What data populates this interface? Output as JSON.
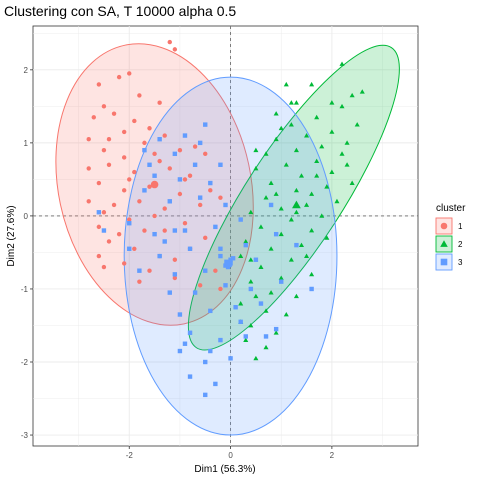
{
  "chart_data": {
    "type": "scatter",
    "title": "Clustering con SA, T 10000 alpha 0.5",
    "xlabel": "Dim1 (56.3%)",
    "ylabel": "Dim2 (27.6%)",
    "xlim": [
      -3.9,
      3.7
    ],
    "ylim": [
      -3.15,
      2.6
    ],
    "xticks": [
      -2,
      0,
      2
    ],
    "yticks": [
      -3,
      -2,
      -1,
      0,
      1,
      2
    ],
    "grid": true,
    "legend_title": "cluster",
    "legend_position": "right",
    "series": [
      {
        "name": "1",
        "color": "#F8766D",
        "marker": "circle",
        "centroid": [
          -1.5,
          0.43
        ],
        "ellipse": {
          "cx": -1.5,
          "cy": 0.43,
          "rx": 1.9,
          "ry": 1.95,
          "angle": -12
        },
        "points": [
          [
            -1.2,
            2.38
          ],
          [
            -1.1,
            2.28
          ],
          [
            -2.0,
            1.95
          ],
          [
            -2.2,
            1.9
          ],
          [
            -1.8,
            1.65
          ],
          [
            -2.6,
            1.8
          ],
          [
            -2.5,
            1.5
          ],
          [
            -1.4,
            1.55
          ],
          [
            -2.7,
            1.35
          ],
          [
            -2.3,
            1.4
          ],
          [
            -1.9,
            1.3
          ],
          [
            -2.1,
            1.15
          ],
          [
            -2.8,
            1.05
          ],
          [
            -1.3,
            1.1
          ],
          [
            -1.6,
            1.2
          ],
          [
            -2.5,
            0.9
          ],
          [
            -2.1,
            0.8
          ],
          [
            -1.5,
            0.85
          ],
          [
            -1.0,
            0.9
          ],
          [
            -0.7,
            0.95
          ],
          [
            -0.5,
            0.85
          ],
          [
            -2.8,
            0.65
          ],
          [
            -2.4,
            0.7
          ],
          [
            -1.9,
            0.6
          ],
          [
            -1.2,
            0.65
          ],
          [
            -0.8,
            0.55
          ],
          [
            -2.6,
            0.45
          ],
          [
            -2.1,
            0.35
          ],
          [
            -1.6,
            0.4
          ],
          [
            -1.0,
            0.3
          ],
          [
            -0.4,
            0.35
          ],
          [
            -2.8,
            0.2
          ],
          [
            -2.3,
            0.15
          ],
          [
            -1.8,
            0.2
          ],
          [
            -1.3,
            0.1
          ],
          [
            -0.6,
            0.15
          ],
          [
            -0.2,
            0.25
          ],
          [
            -2.5,
            0.05
          ],
          [
            -2.0,
            -0.05
          ],
          [
            -1.5,
            0.0
          ],
          [
            -2.6,
            -0.15
          ],
          [
            -2.2,
            -0.25
          ],
          [
            -1.7,
            -0.2
          ],
          [
            -0.9,
            -0.1
          ],
          [
            -2.4,
            -0.35
          ],
          [
            -1.9,
            -0.45
          ],
          [
            -1.4,
            -0.55
          ],
          [
            -0.8,
            -0.45
          ],
          [
            -2.6,
            -0.55
          ],
          [
            -2.1,
            -0.65
          ],
          [
            -1.6,
            -0.75
          ],
          [
            -0.3,
            -0.75
          ],
          [
            -1.1,
            -0.85
          ],
          [
            -0.6,
            -0.95
          ],
          [
            -0.2,
            -1.0
          ],
          [
            -1.8,
            -0.9
          ],
          [
            -1.3,
            -0.2
          ],
          [
            -0.9,
            0.5
          ],
          [
            -2.0,
            0.5
          ],
          [
            -1.7,
            1.0
          ],
          [
            -1.1,
            -0.6
          ],
          [
            -2.4,
            1.05
          ],
          [
            -1.4,
            0.75
          ],
          [
            -0.5,
            -0.3
          ],
          [
            -2.5,
            -0.7
          ]
        ]
      },
      {
        "name": "2",
        "color": "#00BA38",
        "marker": "triangle",
        "centroid": [
          1.3,
          0.15
        ],
        "ellipse": {
          "cx": 1.25,
          "cy": 0.25,
          "rx": 0.95,
          "ry": 2.45,
          "angle": 33
        },
        "points": [
          [
            2.2,
            2.08
          ],
          [
            1.6,
            1.8
          ],
          [
            1.1,
            1.8
          ],
          [
            2.4,
            1.65
          ],
          [
            2.0,
            1.55
          ],
          [
            1.3,
            1.55
          ],
          [
            0.9,
            1.4
          ],
          [
            2.2,
            1.5
          ],
          [
            1.7,
            1.35
          ],
          [
            1.2,
            1.25
          ],
          [
            2.5,
            1.25
          ],
          [
            2.0,
            1.15
          ],
          [
            1.5,
            1.1
          ],
          [
            0.9,
            1.05
          ],
          [
            2.3,
            1.0
          ],
          [
            1.8,
            0.95
          ],
          [
            1.3,
            0.9
          ],
          [
            0.7,
            0.85
          ],
          [
            2.2,
            0.85
          ],
          [
            1.7,
            0.75
          ],
          [
            1.1,
            0.7
          ],
          [
            0.5,
            0.65
          ],
          [
            2.0,
            0.6
          ],
          [
            1.4,
            0.55
          ],
          [
            0.8,
            0.45
          ],
          [
            1.9,
            0.4
          ],
          [
            1.3,
            0.35
          ],
          [
            0.7,
            0.25
          ],
          [
            2.1,
            0.2
          ],
          [
            1.5,
            0.15
          ],
          [
            1.0,
            0.1
          ],
          [
            0.4,
            0.05
          ],
          [
            1.8,
            0.0
          ],
          [
            1.2,
            -0.05
          ],
          [
            0.6,
            -0.15
          ],
          [
            1.6,
            -0.2
          ],
          [
            1.0,
            -0.25
          ],
          [
            0.3,
            -0.35
          ],
          [
            1.4,
            -0.4
          ],
          [
            0.8,
            -0.45
          ],
          [
            0.2,
            -0.55
          ],
          [
            1.2,
            -0.6
          ],
          [
            0.6,
            -0.7
          ],
          [
            1.0,
            -0.85
          ],
          [
            0.4,
            -0.9
          ],
          [
            1.6,
            -0.8
          ],
          [
            0.8,
            -1.05
          ],
          [
            1.3,
            -1.1
          ],
          [
            0.2,
            -1.2
          ],
          [
            0.7,
            -1.3
          ],
          [
            1.1,
            -1.35
          ],
          [
            0.4,
            -1.5
          ],
          [
            0.9,
            -1.6
          ],
          [
            0.3,
            -1.7
          ],
          [
            0.7,
            -1.8
          ],
          [
            0.5,
            -1.95
          ],
          [
            2.6,
            1.7
          ],
          [
            2.3,
            0.7
          ],
          [
            1.7,
            0.55
          ],
          [
            1.2,
            1.55
          ],
          [
            0.5,
            -1.1
          ],
          [
            1.9,
            -0.3
          ],
          [
            0.9,
            0.3
          ],
          [
            2.4,
            0.45
          ],
          [
            1.5,
            -0.55
          ],
          [
            0.4,
            -0.6
          ],
          [
            0.2,
            -1.45
          ],
          [
            0.5,
            0.9
          ],
          [
            1.0,
            1.2
          ],
          [
            1.6,
            0.3
          ],
          [
            1.3,
            0.05
          ]
        ]
      },
      {
        "name": "3",
        "color": "#619CFF",
        "marker": "square",
        "centroid": [
          -0.05,
          -0.65
        ],
        "ellipse": {
          "cx": 0.0,
          "cy": -0.55,
          "rx": 2.1,
          "ry": 2.45,
          "angle": 0
        },
        "points": [
          [
            -0.5,
            1.25
          ],
          [
            -0.9,
            1.1
          ],
          [
            -1.4,
            1.05
          ],
          [
            -1.7,
            0.9
          ],
          [
            -1.1,
            0.85
          ],
          [
            -0.7,
            0.7
          ],
          [
            -0.2,
            0.7
          ],
          [
            -1.5,
            0.55
          ],
          [
            -1.0,
            0.5
          ],
          [
            -0.4,
            0.45
          ],
          [
            -1.7,
            0.35
          ],
          [
            -1.2,
            0.2
          ],
          [
            -0.6,
            0.25
          ],
          [
            -0.1,
            0.15
          ],
          [
            -2.6,
            0.05
          ],
          [
            -2.0,
            -0.1
          ],
          [
            -1.5,
            -0.25
          ],
          [
            -0.9,
            -0.2
          ],
          [
            -0.3,
            -0.15
          ],
          [
            0.2,
            -0.05
          ],
          [
            -2.0,
            -0.45
          ],
          [
            -1.4,
            -0.55
          ],
          [
            -0.8,
            -0.45
          ],
          [
            -0.2,
            -0.45
          ],
          [
            0.3,
            -0.4
          ],
          [
            -1.8,
            -0.75
          ],
          [
            -1.1,
            -0.8
          ],
          [
            -0.5,
            -0.75
          ],
          [
            0.0,
            -0.65
          ],
          [
            0.5,
            -0.6
          ],
          [
            -0.7,
            -1.05
          ],
          [
            -0.1,
            -0.95
          ],
          [
            0.4,
            -1.0
          ],
          [
            1.0,
            -0.9
          ],
          [
            -1.0,
            -1.35
          ],
          [
            -0.4,
            -1.3
          ],
          [
            0.1,
            -1.25
          ],
          [
            0.6,
            -1.2
          ],
          [
            -0.8,
            -1.6
          ],
          [
            -0.2,
            -1.7
          ],
          [
            0.3,
            -1.65
          ],
          [
            0.9,
            -1.55
          ],
          [
            -1.0,
            -1.85
          ],
          [
            -0.5,
            -2.0
          ],
          [
            0.0,
            -1.95
          ],
          [
            -0.8,
            -2.2
          ],
          [
            -0.3,
            -2.3
          ],
          [
            -0.5,
            -2.45
          ],
          [
            -0.9,
            -1.75
          ],
          [
            0.0,
            -0.6
          ],
          [
            -0.1,
            -0.68
          ],
          [
            -0.05,
            -0.7
          ],
          [
            0.05,
            -0.58
          ],
          [
            -0.2,
            -0.55
          ],
          [
            1.3,
            -0.4
          ],
          [
            1.6,
            -1.0
          ],
          [
            0.7,
            -1.65
          ],
          [
            -1.3,
            -0.35
          ],
          [
            0.8,
            0.15
          ],
          [
            -0.6,
            1.0
          ],
          [
            -2.5,
            -0.2
          ],
          [
            0.2,
            -1.45
          ],
          [
            -0.4,
            -1.85
          ],
          [
            -1.2,
            -1.05
          ],
          [
            0.9,
            -0.25
          ],
          [
            -1.6,
            0.7
          ],
          [
            -1.1,
            -0.2
          ]
        ]
      }
    ]
  }
}
